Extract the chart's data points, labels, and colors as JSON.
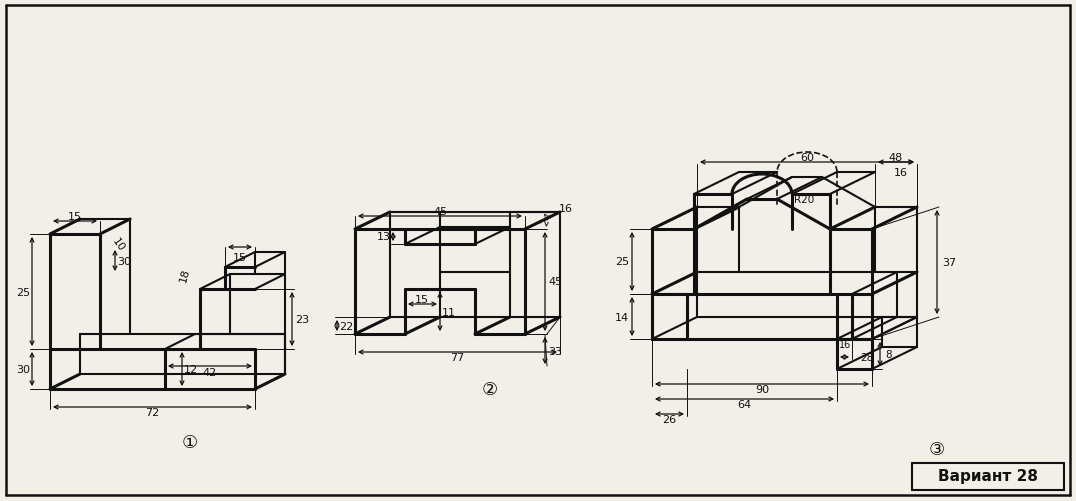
{
  "bg_color": "#f2efe9",
  "lc": "#111111",
  "fig_width": 10.76,
  "fig_height": 5.02,
  "dpi": 100,
  "title": "Вариант 28"
}
